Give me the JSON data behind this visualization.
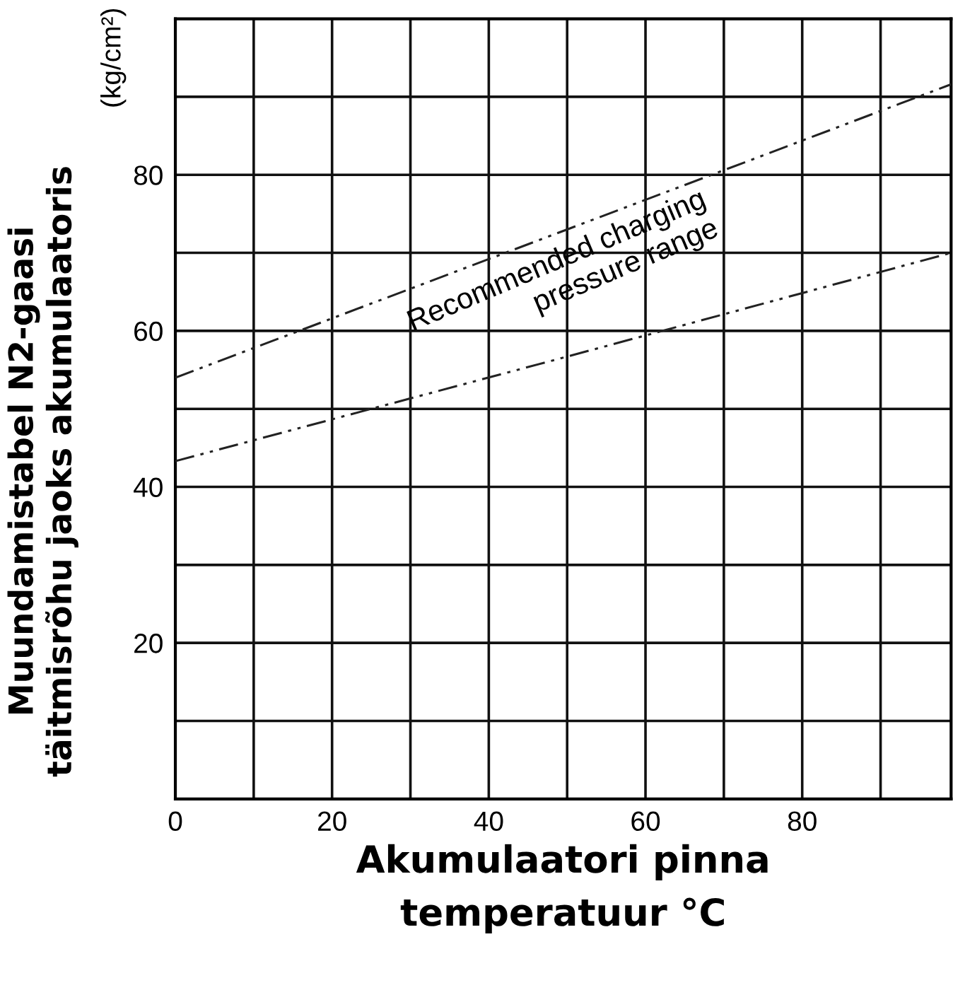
{
  "chart_data": {
    "type": "line",
    "xlabel": "Akumulaatori pinna\ntemperatuur °C",
    "ylabel": "Muundamistabel N2-gaasi\ntäitmisrõhu jaoks akumulaatoris",
    "series": [
      {
        "color": "#222222",
        "x": [
          0,
          50,
          99
        ],
        "values": [
          54,
          73,
          91.6
        ]
      },
      {
        "color": "#222222",
        "x": [
          0,
          50,
          99
        ],
        "values": [
          43.3,
          56.7,
          70
        ]
      }
    ],
    "annotations": [
      "(kg/cm²)",
      "Recommended charging\npressure range"
    ],
    "xlim": [
      0,
      99
    ],
    "ylim": [
      0,
      100
    ],
    "xticks": [
      0,
      {
        "value": 10,
        "label": null
      },
      20,
      {
        "value": 30,
        "label": null
      },
      40,
      {
        "value": 50,
        "label": null
      },
      60,
      {
        "value": 70,
        "label": null
      },
      80,
      {
        "value": 90,
        "label": null
      }
    ],
    "yticks": [
      {
        "value": 10,
        "label": null
      },
      20,
      {
        "value": 30,
        "label": null
      },
      40,
      {
        "value": 50,
        "label": null
      },
      60,
      {
        "value": 70,
        "label": null
      },
      80,
      {
        "value": 90,
        "label": null
      }
    ],
    "grid": true,
    "line_style": "dashed",
    "marker": "none",
    "legend": false
  }
}
